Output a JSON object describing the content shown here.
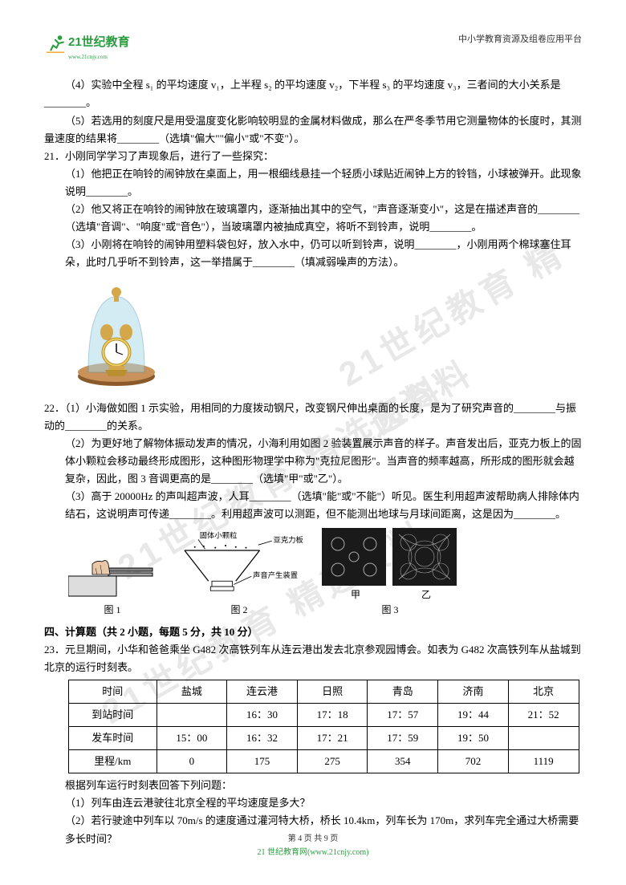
{
  "header": {
    "logo_main": "21世纪教育",
    "logo_url": "www.21cnjy.com",
    "right": "中小学教育资源及组卷应用平台"
  },
  "watermark": "21世纪教育 精选资料",
  "q20": {
    "p4": "（4）实验中全程 s₁ 的平均速度 v₁，上半程 s₂ 的平均速度 v₂，下半程 s₃ 的平均速度 v₃，三者间的大小关系是________。",
    "p5": "（5）若选用的刻度尺是用受温度变化影响较明显的金属材料做成，那么在严冬季节用它测量物体的长度时，其测量速度的结果将________（选填\"偏大\"\"偏小\"或\"不变\"）。"
  },
  "q21": {
    "num": "21．",
    "intro": "小刚同学学习了声现象后，进行了一些探究：",
    "p1": "（1）他把正在响铃的闹钟放在桌面上，用一根细线悬挂一个轻质小球贴近闹钟上方的铃铛，小球被弹开。此现象说明________。",
    "p2": "（2）他又将正在响铃的闹钟放在玻璃罩内，逐渐抽出其中的空气，\"声音逐渐变小\"，这是在描述声音的________（选填\"音调\"、\"响度\"或\"音色\"），当玻璃罩内被抽成真空，将听不到铃声，说明________。",
    "p3": "（3）小刚将在响铃的闹钟用塑料袋包好，放入水中，仍可以听到铃声，说明________，小刚用两个棉球塞住耳朵，此时几乎听不到铃声，这一举措属于________（填减弱噪声的方法）。"
  },
  "q22": {
    "num": "22．",
    "p1": "（1）小海做如图 1 示实验，用相同的力度拨动钢尺，改变钢尺伸出桌面的长度，是为了研究声音的________与振动的________的关系。",
    "p2": "（2）为更好地了解物体振动发声的情况，小海利用如图 2 验装置展示声音的样子。声音发出后，亚克力板上的固体小颗粒会移动最终形成图形，这种图形物理学中称为\"克拉尼图形\"。当声音的频率越高，所形成的图形就会越复杂，因此，图 3 音调更高的是________（选填\"甲\"或\"乙\"）。",
    "p3": "（3）高于 20000Hz 的声叫超声波，人耳________（选填\"能\"或\"不能\"）听见。医生利用超声波帮助病人排除体内结石，这说明声可传递________。利用超声波可以测距，但不能测出地球与月球间距离，这是因为________。",
    "fig_labels": {
      "f1": "图  1",
      "f2": "图 2",
      "f3": "图  3",
      "solid_particle": "固体小颗粒",
      "acrylic": "亚克力板",
      "sound_device": "声音产生装置",
      "jia": "甲",
      "yi": "乙"
    }
  },
  "section4": "四、计算题（共 2 小题，每题 5 分，共 10 分）",
  "q23": {
    "num": "23．",
    "intro": "元旦期间，小华和爸爸乘坐 G482 次高铁列车从连云港出发去北京参观园博会。如表为 G482 次高铁列车从盐城到北京的运行时刻表。",
    "table": {
      "headers": [
        "时间",
        "盐城",
        "连云港",
        "日照",
        "青岛",
        "济南",
        "北京"
      ],
      "rows": [
        [
          "到站时间",
          "",
          "16：30",
          "17：18",
          "17：57",
          "19：44",
          "21：52"
        ],
        [
          "发车时间",
          "15：00",
          "16：32",
          "17：21",
          "17：59",
          "19：50",
          ""
        ],
        [
          "里程/km",
          "0",
          "175",
          "275",
          "354",
          "702",
          "1119"
        ]
      ]
    },
    "after_table": "根据列车运行时刻表回答下列问题：",
    "p1": "（1）列车由连云港驶往北京全程的平均速度是多大？",
    "p2": "（2）若行驶途中列车以 70m/s 的速度通过灌河特大桥，桥长 10.4km，列车长为 170m，求列车完全通过大桥需要多长时间？"
  },
  "footer": {
    "page": "第  4  页  共  9  页",
    "site": "21 世纪教育网(www.21cnjy.com)"
  }
}
